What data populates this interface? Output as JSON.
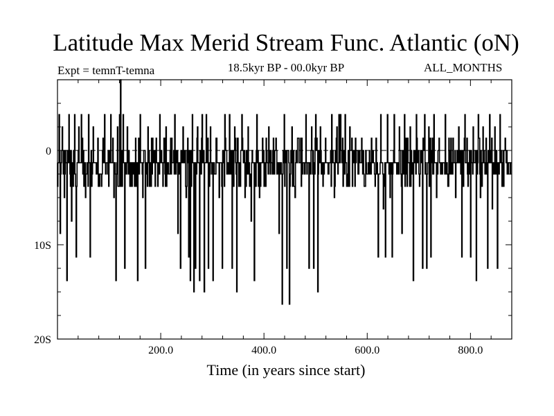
{
  "chart_data": {
    "type": "line",
    "title": "Latitude Max Merid Stream Func. Atlantic (oN)",
    "subtitle_left": "Expt = temnT-temna",
    "subtitle_center": "18.5kyr BP - 00.0kyr BP",
    "subtitle_right": "ALL_MONTHS",
    "xlabel": "Time (in years since start)",
    "ylabel": "",
    "xlim": [
      0,
      880
    ],
    "ylim": [
      -20,
      7.5
    ],
    "x_ticks": [
      200,
      400,
      600,
      800
    ],
    "x_tick_labels": [
      "200.0",
      "400.0",
      "600.0",
      "800.0"
    ],
    "y_ticks": [
      0,
      -10,
      -20
    ],
    "y_tick_labels": [
      "0",
      "10S",
      "20S"
    ],
    "reference_line": 0,
    "grid": false,
    "baseline": -1.3,
    "levels": [
      3.8,
      2.5,
      1.3,
      0,
      -1.3,
      -2.5,
      -3.8,
      -5,
      -6.2,
      -7.5
    ],
    "spikes": [
      {
        "x": 4,
        "y": 3.8
      },
      {
        "x": 6,
        "y": -8.8
      },
      {
        "x": 10,
        "y": 2.5
      },
      {
        "x": 14,
        "y": -5.0
      },
      {
        "x": 19,
        "y": -13.8
      },
      {
        "x": 23,
        "y": 3.8
      },
      {
        "x": 28,
        "y": -7.5
      },
      {
        "x": 34,
        "y": 3.8
      },
      {
        "x": 37,
        "y": -11.3
      },
      {
        "x": 42,
        "y": 2.5
      },
      {
        "x": 47,
        "y": 3.8
      },
      {
        "x": 55,
        "y": -5.0
      },
      {
        "x": 61,
        "y": 3.8
      },
      {
        "x": 64,
        "y": -11.3
      },
      {
        "x": 70,
        "y": 2.5
      },
      {
        "x": 79,
        "y": 1.3
      },
      {
        "x": 86,
        "y": -3.8
      },
      {
        "x": 92,
        "y": 3.8
      },
      {
        "x": 98,
        "y": -2.5
      },
      {
        "x": 104,
        "y": 3.8
      },
      {
        "x": 110,
        "y": -5.0
      },
      {
        "x": 114,
        "y": -13.8
      },
      {
        "x": 117,
        "y": 2.5
      },
      {
        "x": 121,
        "y": 3.8
      },
      {
        "x": 123,
        "y": 7.5
      },
      {
        "x": 126,
        "y": -3.8
      },
      {
        "x": 128,
        "y": 3.8
      },
      {
        "x": 131,
        "y": -12.5
      },
      {
        "x": 136,
        "y": 2.5
      },
      {
        "x": 142,
        "y": -3.8
      },
      {
        "x": 148,
        "y": -2.5
      },
      {
        "x": 152,
        "y": 1.3
      },
      {
        "x": 156,
        "y": -13.8
      },
      {
        "x": 161,
        "y": 3.8
      },
      {
        "x": 166,
        "y": -5.0
      },
      {
        "x": 171,
        "y": -12.5
      },
      {
        "x": 176,
        "y": 2.5
      },
      {
        "x": 184,
        "y": -2.5
      },
      {
        "x": 192,
        "y": 1.3
      },
      {
        "x": 199,
        "y": 3.8
      },
      {
        "x": 205,
        "y": -3.8
      },
      {
        "x": 211,
        "y": 2.5
      },
      {
        "x": 217,
        "y": -2.5
      },
      {
        "x": 222,
        "y": 1.3
      },
      {
        "x": 228,
        "y": 3.8
      },
      {
        "x": 234,
        "y": -8.8
      },
      {
        "x": 239,
        "y": -12.5
      },
      {
        "x": 244,
        "y": 2.5
      },
      {
        "x": 250,
        "y": -5.0
      },
      {
        "x": 255,
        "y": -11.3
      },
      {
        "x": 258,
        "y": -13.8
      },
      {
        "x": 262,
        "y": 3.8
      },
      {
        "x": 265,
        "y": -15.0
      },
      {
        "x": 268,
        "y": -12.5
      },
      {
        "x": 272,
        "y": 2.5
      },
      {
        "x": 276,
        "y": -13.8
      },
      {
        "x": 281,
        "y": 3.8
      },
      {
        "x": 285,
        "y": -15.0
      },
      {
        "x": 289,
        "y": 3.8
      },
      {
        "x": 293,
        "y": -12.5
      },
      {
        "x": 297,
        "y": 2.5
      },
      {
        "x": 302,
        "y": -13.8
      },
      {
        "x": 308,
        "y": 1.3
      },
      {
        "x": 314,
        "y": -5.0
      },
      {
        "x": 320,
        "y": -12.5
      },
      {
        "x": 325,
        "y": 3.8
      },
      {
        "x": 330,
        "y": -2.5
      },
      {
        "x": 334,
        "y": 3.8
      },
      {
        "x": 339,
        "y": -12.5
      },
      {
        "x": 344,
        "y": 2.5
      },
      {
        "x": 348,
        "y": -15.0
      },
      {
        "x": 352,
        "y": -3.8
      },
      {
        "x": 358,
        "y": 3.8
      },
      {
        "x": 364,
        "y": -5.0
      },
      {
        "x": 370,
        "y": 2.5
      },
      {
        "x": 376,
        "y": -7.5
      },
      {
        "x": 382,
        "y": -13.8
      },
      {
        "x": 387,
        "y": 3.8
      },
      {
        "x": 392,
        "y": -5.0
      },
      {
        "x": 398,
        "y": 1.3
      },
      {
        "x": 404,
        "y": -3.8
      },
      {
        "x": 410,
        "y": 2.5
      },
      {
        "x": 417,
        "y": -2.5
      },
      {
        "x": 424,
        "y": 1.3
      },
      {
        "x": 430,
        "y": -8.8
      },
      {
        "x": 436,
        "y": -16.3
      },
      {
        "x": 440,
        "y": 3.8
      },
      {
        "x": 445,
        "y": -12.5
      },
      {
        "x": 450,
        "y": -16.3
      },
      {
        "x": 455,
        "y": 2.5
      },
      {
        "x": 461,
        "y": -5.0
      },
      {
        "x": 468,
        "y": 1.3
      },
      {
        "x": 475,
        "y": -2.5
      },
      {
        "x": 482,
        "y": 3.8
      },
      {
        "x": 488,
        "y": -12.5
      },
      {
        "x": 493,
        "y": 2.5
      },
      {
        "x": 497,
        "y": -12.5
      },
      {
        "x": 501,
        "y": 3.8
      },
      {
        "x": 505,
        "y": -15.0
      },
      {
        "x": 510,
        "y": 2.5
      },
      {
        "x": 515,
        "y": -3.8
      },
      {
        "x": 520,
        "y": 1.3
      },
      {
        "x": 526,
        "y": -2.5
      },
      {
        "x": 532,
        "y": 3.8
      },
      {
        "x": 537,
        "y": -5.0
      },
      {
        "x": 542,
        "y": 2.5
      },
      {
        "x": 546,
        "y": 3.8
      },
      {
        "x": 549,
        "y": 3.8
      },
      {
        "x": 553,
        "y": 1.3
      },
      {
        "x": 558,
        "y": 3.8
      },
      {
        "x": 562,
        "y": -2.5
      },
      {
        "x": 567,
        "y": 2.5
      },
      {
        "x": 572,
        "y": -3.8
      },
      {
        "x": 578,
        "y": 1.3
      },
      {
        "x": 584,
        "y": -2.5
      },
      {
        "x": 590,
        "y": 1.3
      },
      {
        "x": 596,
        "y": -3.8
      },
      {
        "x": 602,
        "y": -2.5
      },
      {
        "x": 609,
        "y": 1.3
      },
      {
        "x": 616,
        "y": -3.8
      },
      {
        "x": 622,
        "y": -11.3
      },
      {
        "x": 627,
        "y": 3.8
      },
      {
        "x": 632,
        "y": -6.2
      },
      {
        "x": 636,
        "y": -11.3
      },
      {
        "x": 640,
        "y": 3.8
      },
      {
        "x": 645,
        "y": -5.0
      },
      {
        "x": 649,
        "y": -11.3
      },
      {
        "x": 653,
        "y": 3.8
      },
      {
        "x": 658,
        "y": -2.5
      },
      {
        "x": 663,
        "y": 2.5
      },
      {
        "x": 668,
        "y": -8.8
      },
      {
        "x": 673,
        "y": 3.8
      },
      {
        "x": 678,
        "y": -3.8
      },
      {
        "x": 684,
        "y": 2.5
      },
      {
        "x": 690,
        "y": -13.8
      },
      {
        "x": 696,
        "y": 3.8
      },
      {
        "x": 702,
        "y": -3.8
      },
      {
        "x": 708,
        "y": -12.5
      },
      {
        "x": 712,
        "y": 3.8
      },
      {
        "x": 716,
        "y": -12.5
      },
      {
        "x": 720,
        "y": 2.5
      },
      {
        "x": 724,
        "y": -11.3
      },
      {
        "x": 730,
        "y": 3.8
      },
      {
        "x": 735,
        "y": -5.0
      },
      {
        "x": 740,
        "y": 1.3
      },
      {
        "x": 746,
        "y": -2.5
      },
      {
        "x": 752,
        "y": 3.8
      },
      {
        "x": 757,
        "y": -3.8
      },
      {
        "x": 762,
        "y": -2.5
      },
      {
        "x": 767,
        "y": 1.3
      },
      {
        "x": 772,
        "y": -5.0
      },
      {
        "x": 778,
        "y": 2.5
      },
      {
        "x": 784,
        "y": -11.3
      },
      {
        "x": 790,
        "y": 3.8
      },
      {
        "x": 796,
        "y": -3.8
      },
      {
        "x": 801,
        "y": -11.3
      },
      {
        "x": 806,
        "y": 2.5
      },
      {
        "x": 812,
        "y": -13.8
      },
      {
        "x": 816,
        "y": 3.8
      },
      {
        "x": 820,
        "y": -5.0
      },
      {
        "x": 825,
        "y": 2.5
      },
      {
        "x": 830,
        "y": -2.5
      },
      {
        "x": 834,
        "y": -12.5
      },
      {
        "x": 838,
        "y": 3.8
      },
      {
        "x": 843,
        "y": -6.2
      },
      {
        "x": 848,
        "y": 2.5
      },
      {
        "x": 853,
        "y": -12.5
      },
      {
        "x": 858,
        "y": 3.8
      },
      {
        "x": 863,
        "y": -2.5
      },
      {
        "x": 868,
        "y": 1.3
      },
      {
        "x": 874,
        "y": -2.5
      }
    ]
  }
}
